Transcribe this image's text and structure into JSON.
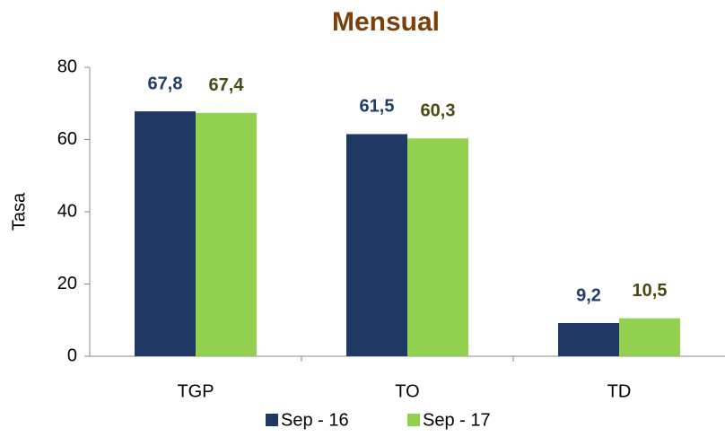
{
  "chart_data": {
    "type": "bar",
    "title": "Mensual",
    "y_label": "Tasa",
    "categories": [
      "TGP",
      "TO",
      "TD"
    ],
    "series": [
      {
        "name": "Sep - 16",
        "color": "#1f3864",
        "label_color": "#1f3f6b",
        "values": [
          67.8,
          61.5,
          9.2
        ],
        "value_labels": [
          "67,8",
          "61,5",
          "9,2"
        ]
      },
      {
        "name": "Sep - 17",
        "color": "#92d050",
        "label_color": "#4a4a14",
        "values": [
          67.4,
          60.3,
          10.5
        ],
        "value_labels": [
          "67,4",
          "60,3",
          "10,5"
        ]
      }
    ],
    "ylim": [
      0,
      80
    ],
    "yticks": [
      0,
      20,
      40,
      60,
      80
    ],
    "grid": false
  }
}
